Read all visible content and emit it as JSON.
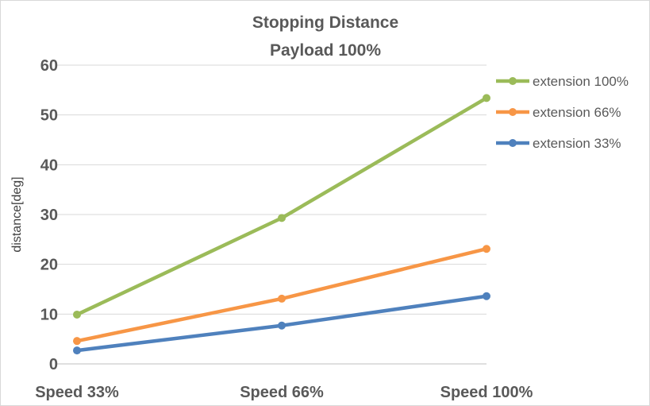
{
  "chart_data": {
    "type": "line",
    "title": "Stopping Distance",
    "subtitle": "Payload 100%",
    "xlabel": "",
    "ylabel": "distance[deg]",
    "categories": [
      "Speed 33%",
      "Speed 66%",
      "Speed 100%"
    ],
    "ylim": [
      0,
      60
    ],
    "yticks": [
      0,
      10,
      20,
      30,
      40,
      50,
      60
    ],
    "grid": true,
    "legend_position": "right",
    "series": [
      {
        "name": "extension 100%",
        "color": "#9bbb59",
        "values": [
          9.9,
          29.3,
          53.4
        ]
      },
      {
        "name": "extension 66%",
        "color": "#f79646",
        "values": [
          4.6,
          13.1,
          23.1
        ]
      },
      {
        "name": "extension 33%",
        "color": "#4f81bd",
        "values": [
          2.7,
          7.7,
          13.6
        ]
      }
    ]
  }
}
